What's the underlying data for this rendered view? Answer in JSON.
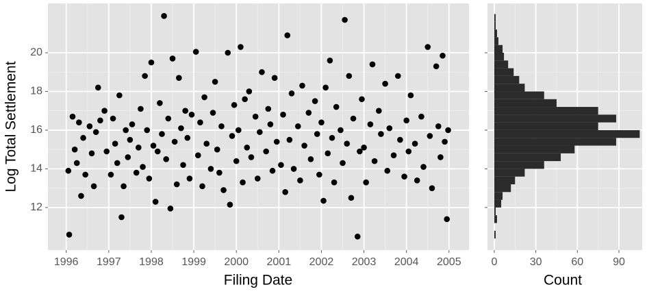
{
  "chart_data": [
    {
      "type": "scatter",
      "xlabel": "Filing Date",
      "ylabel": "Log Total Settlement",
      "color": "#000000",
      "grid": true,
      "xlim": [
        1995.57,
        2005.47
      ],
      "xticks": [
        1996,
        1997,
        1998,
        1999,
        2000,
        2001,
        2002,
        2003,
        2004,
        2005
      ],
      "ylim": [
        9.8,
        22.55
      ],
      "yticks": [
        12,
        14,
        16,
        18,
        20
      ],
      "x": [
        1996.07,
        1996.05,
        1996.15,
        1996.2,
        1996.25,
        1996.3,
        1996.35,
        1996.4,
        1996.45,
        1996.55,
        1996.6,
        1996.65,
        1996.7,
        1996.75,
        1996.8,
        1996.9,
        1996.95,
        1997.05,
        1997.1,
        1997.15,
        1997.2,
        1997.25,
        1997.3,
        1997.35,
        1997.4,
        1997.45,
        1997.5,
        1997.55,
        1997.65,
        1997.7,
        1997.75,
        1997.8,
        1997.85,
        1997.9,
        1997.95,
        1998.0,
        1998.05,
        1998.1,
        1998.15,
        1998.2,
        1998.25,
        1998.3,
        1998.35,
        1998.4,
        1998.45,
        1998.5,
        1998.55,
        1998.6,
        1998.65,
        1998.7,
        1998.75,
        1998.8,
        1998.85,
        1998.9,
        1998.95,
        1999.05,
        1999.1,
        1999.15,
        1999.2,
        1999.25,
        1999.3,
        1999.4,
        1999.45,
        1999.5,
        1999.55,
        1999.6,
        1999.65,
        1999.7,
        1999.8,
        1999.85,
        1999.9,
        1999.95,
        2000.0,
        2000.05,
        2000.1,
        2000.15,
        2000.2,
        2000.25,
        2000.3,
        2000.35,
        2000.45,
        2000.5,
        2000.55,
        2000.6,
        2000.7,
        2000.75,
        2000.8,
        2000.85,
        2000.9,
        2000.95,
        2001.05,
        2001.1,
        2001.15,
        2001.2,
        2001.25,
        2001.3,
        2001.35,
        2001.45,
        2001.5,
        2001.55,
        2001.6,
        2001.7,
        2001.75,
        2001.85,
        2001.9,
        2001.95,
        2002.0,
        2002.05,
        2002.1,
        2002.15,
        2002.2,
        2002.25,
        2002.3,
        2002.35,
        2002.45,
        2002.5,
        2002.55,
        2002.6,
        2002.65,
        2002.7,
        2002.75,
        2002.85,
        2002.9,
        2002.95,
        2003.0,
        2003.05,
        2003.15,
        2003.2,
        2003.25,
        2003.35,
        2003.4,
        2003.5,
        2003.55,
        2003.6,
        2003.7,
        2003.8,
        2003.85,
        2003.95,
        2004.0,
        2004.05,
        2004.1,
        2004.2,
        2004.25,
        2004.35,
        2004.4,
        2004.5,
        2004.55,
        2004.6,
        2004.7,
        2004.75,
        2004.8,
        2004.85,
        2004.9,
        2004.95,
        2004.98
      ],
      "values": [
        10.6,
        13.9,
        16.7,
        15.0,
        14.3,
        16.4,
        12.6,
        15.6,
        13.7,
        16.2,
        14.8,
        13.1,
        15.9,
        18.2,
        16.5,
        17.0,
        14.9,
        13.7,
        16.6,
        15.3,
        14.3,
        17.8,
        11.5,
        13.1,
        16.0,
        14.6,
        15.5,
        16.3,
        13.8,
        15.1,
        17.1,
        14.1,
        18.8,
        16.0,
        13.5,
        19.5,
        15.2,
        12.3,
        14.9,
        17.4,
        15.8,
        21.9,
        14.5,
        16.6,
        11.95,
        19.7,
        15.4,
        13.2,
        18.7,
        16.1,
        14.2,
        17.0,
        15.6,
        13.5,
        16.8,
        20.05,
        14.7,
        16.4,
        13.1,
        17.7,
        15.3,
        14.0,
        16.9,
        18.5,
        15.0,
        13.8,
        16.2,
        12.9,
        20.0,
        12.15,
        15.7,
        17.3,
        14.4,
        16.0,
        20.3,
        13.3,
        17.6,
        15.1,
        18.0,
        14.6,
        16.7,
        13.5,
        15.9,
        19.0,
        14.9,
        17.1,
        16.3,
        13.9,
        18.7,
        15.4,
        14.2,
        16.8,
        12.8,
        20.9,
        15.5,
        17.9,
        14.0,
        16.2,
        13.4,
        18.3,
        15.2,
        16.9,
        14.5,
        17.5,
        15.8,
        13.7,
        16.4,
        12.35,
        18.2,
        14.8,
        19.6,
        15.6,
        13.3,
        17.2,
        16.0,
        14.3,
        21.7,
        15.3,
        18.8,
        12.5,
        16.6,
        10.5,
        14.9,
        17.6,
        15.1,
        13.3,
        16.3,
        19.4,
        14.4,
        17.0,
        15.8,
        18.4,
        13.9,
        16.1,
        14.7,
        18.8,
        15.5,
        13.6,
        16.5,
        14.9,
        17.8,
        15.3,
        13.4,
        16.7,
        14.1,
        20.3,
        15.7,
        13.0,
        19.3,
        16.2,
        14.6,
        19.85,
        15.4,
        11.4,
        16.0
      ]
    },
    {
      "type": "histogram",
      "orientation": "horizontal",
      "xlabel": "Count",
      "color": "#2b2b2b",
      "grid": true,
      "xlim": [
        -4.9,
        106.8
      ],
      "xticks": [
        0,
        30,
        60,
        90
      ],
      "ylim": [
        9.8,
        22.55
      ],
      "yticks": [
        12,
        14,
        16,
        18,
        20
      ],
      "bins": [
        10.4,
        10.8,
        11.2,
        11.6,
        12.0,
        12.4,
        12.8,
        13.2,
        13.6,
        14.0,
        14.4,
        14.8,
        15.2,
        15.6,
        16.0,
        16.4,
        16.8,
        17.2,
        17.6,
        18.0,
        18.4,
        18.8,
        19.2,
        19.6,
        20.0,
        20.4,
        20.8,
        21.2,
        21.6,
        22.0
      ],
      "values": [
        1,
        0,
        2,
        1,
        5,
        6,
        12,
        15,
        22,
        36,
        48,
        58,
        88,
        105,
        75,
        88,
        75,
        45,
        36,
        22,
        18,
        14,
        10,
        7,
        6,
        3,
        2,
        1,
        1
      ]
    }
  ]
}
